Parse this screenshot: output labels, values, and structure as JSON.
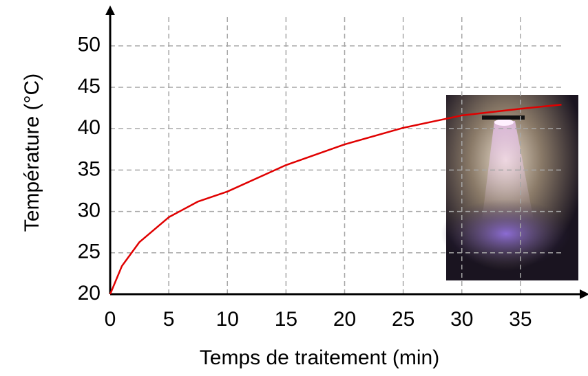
{
  "chart_data": {
    "type": "line",
    "x_label": "Temps de traitement (min)",
    "y_label": "Température (°C)",
    "x": [
      0,
      1,
      2.5,
      5,
      7.5,
      10,
      15,
      20,
      25,
      30,
      35,
      38.5
    ],
    "values": [
      20,
      23.4,
      26.3,
      29.3,
      31.2,
      32.4,
      35.6,
      38.1,
      40.1,
      41.6,
      42.4,
      42.9
    ],
    "color": "#e00000",
    "xlim": [
      0,
      40
    ],
    "ylim": [
      20,
      54
    ],
    "xticks": [
      0,
      5,
      10,
      15,
      20,
      25,
      30,
      35
    ],
    "yticks": [
      20,
      25,
      30,
      35,
      40,
      45,
      50
    ],
    "grid": true
  }
}
